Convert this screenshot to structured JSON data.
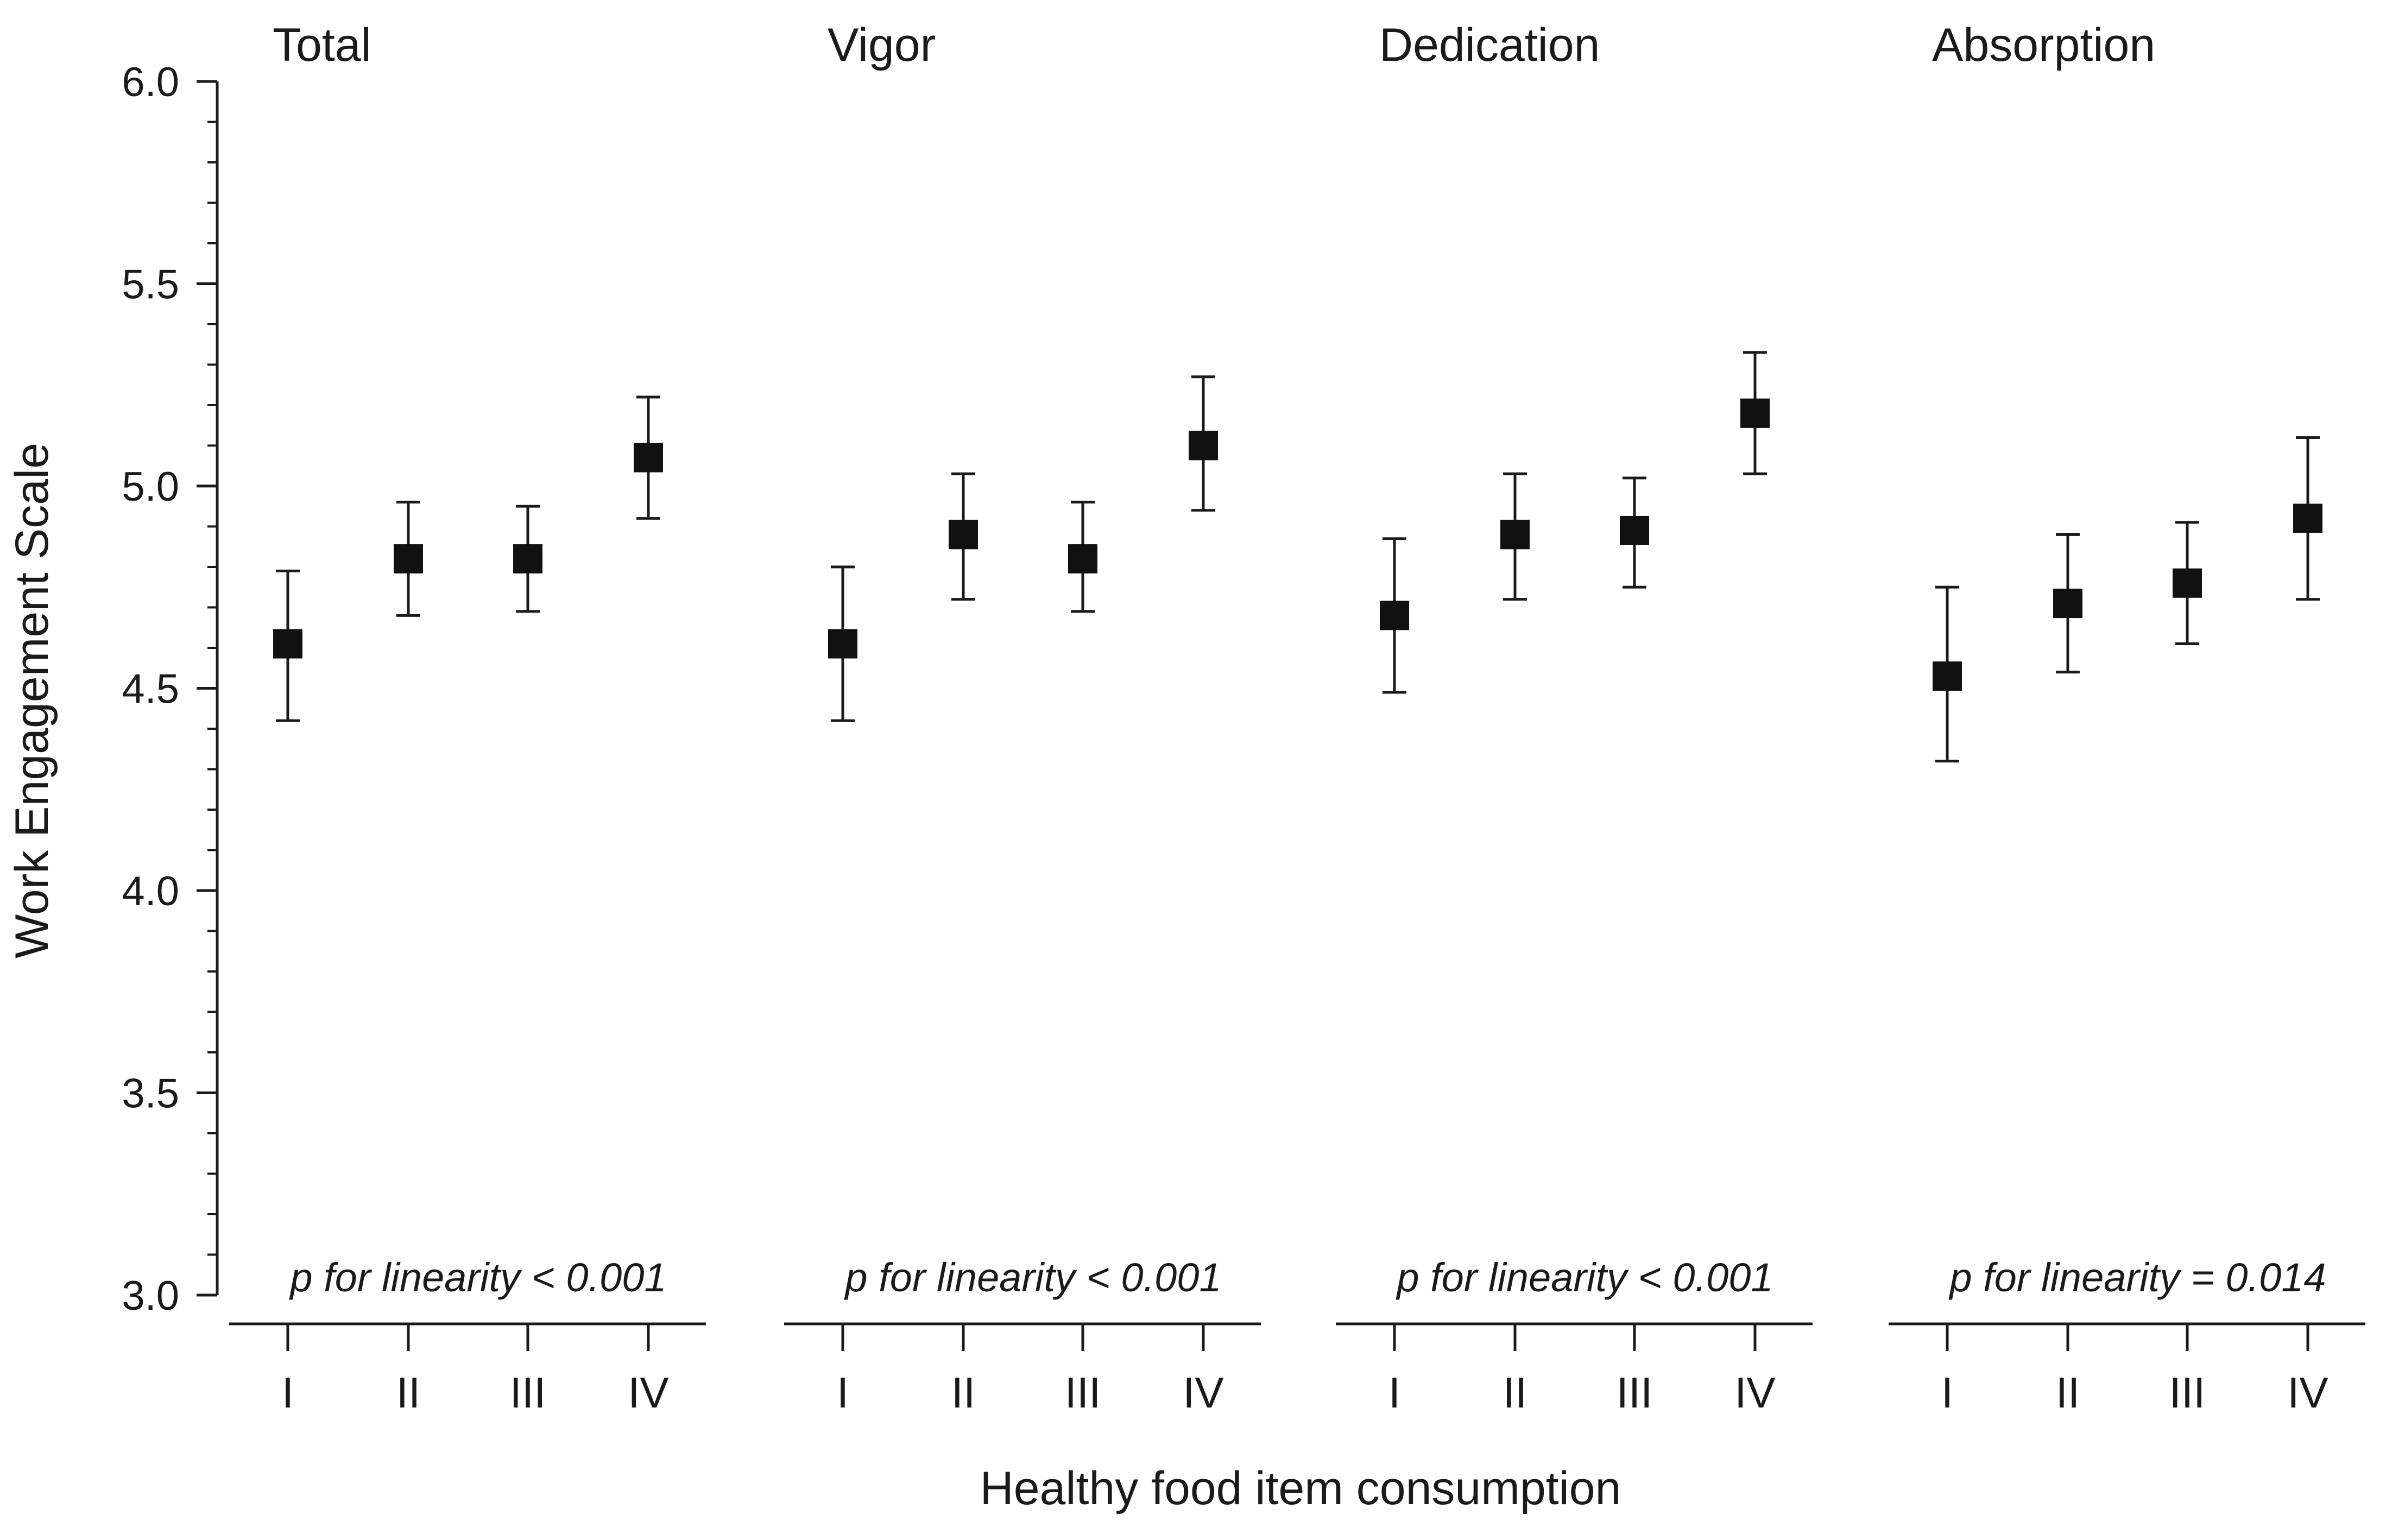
{
  "chart_data": {
    "type": "scatter",
    "ylabel": "Work Engagement Scale",
    "xlabel": "Healthy food item consumption",
    "ylim": [
      3.0,
      6.0
    ],
    "ytick_labels": [
      "3.0",
      "3.5",
      "4.0",
      "4.5",
      "5.0",
      "5.5",
      "6.0"
    ],
    "categories": [
      "I",
      "II",
      "III",
      "IV"
    ],
    "panels": [
      {
        "title": "Total",
        "annotation": "p for linearity < 0.001",
        "means": [
          4.61,
          4.82,
          4.82,
          5.07
        ],
        "lower": [
          4.42,
          4.68,
          4.69,
          4.92
        ],
        "upper": [
          4.79,
          4.96,
          4.95,
          5.22
        ]
      },
      {
        "title": "Vigor",
        "annotation": "p for linearity < 0.001",
        "means": [
          4.61,
          4.88,
          4.82,
          5.1
        ],
        "lower": [
          4.42,
          4.72,
          4.69,
          4.94
        ],
        "upper": [
          4.8,
          5.03,
          4.96,
          5.27
        ]
      },
      {
        "title": "Dedication",
        "annotation": "p for linearity < 0.001",
        "means": [
          4.68,
          4.88,
          4.89,
          5.18
        ],
        "lower": [
          4.49,
          4.72,
          4.75,
          5.03
        ],
        "upper": [
          4.87,
          5.03,
          5.02,
          5.33
        ]
      },
      {
        "title": "Absorption",
        "annotation": "p for linearity = 0.014",
        "means": [
          4.53,
          4.71,
          4.76,
          4.92
        ],
        "lower": [
          4.32,
          4.54,
          4.61,
          4.72
        ],
        "upper": [
          4.75,
          4.88,
          4.91,
          5.12
        ]
      }
    ]
  }
}
